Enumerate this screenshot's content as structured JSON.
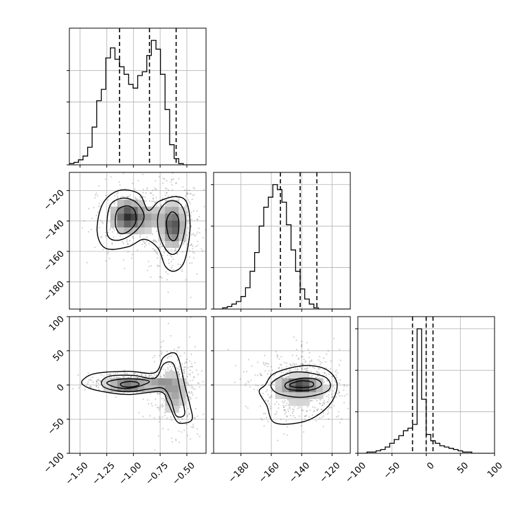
{
  "chart_data": {
    "type": "corner",
    "title": "",
    "parameters": [
      "",
      "",
      ""
    ],
    "ranges": [
      [
        -1.6,
        -0.32
      ],
      [
        -198,
        -108
      ],
      [
        -100,
        100
      ]
    ],
    "ticks": [
      [
        -1.5,
        -1.25,
        -1.0,
        -0.75,
        -0.5
      ],
      [
        -180,
        -160,
        -140,
        -120
      ],
      [
        -100,
        -50,
        0,
        50,
        100
      ]
    ],
    "tick_labels": [
      [
        "−1.50",
        "−1.25",
        "−1.00",
        "−0.75",
        "−0.50"
      ],
      [
        "−180",
        "−160",
        "−140",
        "−120"
      ],
      [
        "−100",
        "−50",
        "0",
        "50",
        "100"
      ]
    ],
    "diag_ticks": [
      [
        0,
        0.25,
        0.5,
        0.75
      ],
      [
        0,
        0.33,
        0.66,
        0.99
      ],
      [
        0,
        0.33,
        0.66,
        0.99
      ]
    ],
    "histograms": [
      {
        "edges": [
          -1.6,
          -1.557,
          -1.515,
          -1.472,
          -1.429,
          -1.387,
          -1.344,
          -1.301,
          -1.259,
          -1.216,
          -1.173,
          -1.131,
          -1.088,
          -1.045,
          -1.003,
          -0.96,
          -0.917,
          -0.875,
          -0.832,
          -0.789,
          -0.747,
          -0.704,
          -0.661,
          -0.619,
          -0.576,
          -0.533,
          -0.491,
          -0.448,
          -0.405,
          -0.363,
          -0.32
        ],
        "counts": [
          0.01,
          0.02,
          0.04,
          0.07,
          0.14,
          0.3,
          0.51,
          0.6,
          0.85,
          0.93,
          0.84,
          0.78,
          0.72,
          0.64,
          0.61,
          0.71,
          0.74,
          0.87,
          0.99,
          0.92,
          0.72,
          0.44,
          0.16,
          0.05,
          0.01,
          0.0,
          0.0,
          0.0,
          0.0,
          0.0
        ],
        "quantiles": [
          -1.13,
          -0.85,
          -0.6
        ]
      },
      {
        "edges": [
          -198,
          -195,
          -192,
          -189,
          -186,
          -183,
          -180,
          -177,
          -174,
          -171,
          -168,
          -165,
          -162,
          -159,
          -156,
          -153,
          -150,
          -147,
          -144,
          -141,
          -138,
          -135,
          -132,
          -129,
          -126,
          -123,
          -120,
          -117,
          -114,
          -111,
          -108
        ],
        "counts": [
          0.0,
          0.0,
          0.01,
          0.02,
          0.04,
          0.06,
          0.1,
          0.17,
          0.3,
          0.45,
          0.66,
          0.81,
          0.89,
          0.99,
          0.95,
          0.85,
          0.67,
          0.47,
          0.3,
          0.16,
          0.08,
          0.04,
          0.01,
          0.0,
          0.0,
          0.0,
          0.0,
          0.0,
          0.0,
          0.0
        ],
        "quantiles": [
          -154,
          -141,
          -130
        ]
      },
      {
        "edges": [
          -100,
          -93.3,
          -86.7,
          -80,
          -73.3,
          -66.7,
          -60,
          -53.3,
          -46.7,
          -40,
          -33.3,
          -26.7,
          -20,
          -13.3,
          -6.7,
          0,
          6.7,
          13.3,
          20,
          26.7,
          33.3,
          40,
          46.7,
          53.3,
          60,
          66.7,
          73.3,
          80,
          86.7,
          93.3,
          100
        ],
        "counts": [
          0.0,
          0.0,
          0.01,
          0.01,
          0.02,
          0.03,
          0.05,
          0.08,
          0.11,
          0.14,
          0.18,
          0.2,
          0.23,
          0.99,
          0.43,
          0.15,
          0.1,
          0.08,
          0.06,
          0.05,
          0.04,
          0.03,
          0.02,
          0.01,
          0.01,
          0.0,
          0.0,
          0.0,
          0.0,
          0.0
        ],
        "quantiles": [
          -20,
          0,
          10
        ]
      }
    ],
    "pairs": [
      {
        "x": 0,
        "y": 1,
        "scatter": {
          "n": 700,
          "components": [
            {
              "w": 0.45,
              "mx": -1.05,
              "my": -137,
              "sx": 0.17,
              "sy": 12
            },
            {
              "w": 0.55,
              "mx": -0.63,
              "my": -143,
              "sx": 0.12,
              "sy": 16
            }
          ]
        },
        "density": [
          {
            "mx": -1.05,
            "my": -137,
            "sx": 0.085,
            "sy": 6,
            "v": 0.75
          },
          {
            "mx": -0.63,
            "my": -143,
            "sx": 0.06,
            "sy": 8,
            "v": 0.65
          },
          {
            "mx": -0.85,
            "my": -138,
            "sx": 0.1,
            "sy": 5,
            "v": 0.25
          }
        ],
        "contours": [
          [
            [
              -1.34,
              -147
            ],
            [
              -1.29,
              -129
            ],
            [
              -1.14,
              -120
            ],
            [
              -0.95,
              -122
            ],
            [
              -0.86,
              -133
            ],
            [
              -0.76,
              -127
            ],
            [
              -0.6,
              -124
            ],
            [
              -0.5,
              -128
            ],
            [
              -0.47,
              -145
            ],
            [
              -0.52,
              -166
            ],
            [
              -0.61,
              -173
            ],
            [
              -0.7,
              -170
            ],
            [
              -0.77,
              -158
            ],
            [
              -0.9,
              -152
            ],
            [
              -1.05,
              -157
            ],
            [
              -1.26,
              -158
            ]
          ],
          [
            [
              -1.25,
              -146
            ],
            [
              -1.22,
              -130
            ],
            [
              -1.1,
              -125
            ],
            [
              -0.97,
              -128
            ],
            [
              -0.9,
              -137
            ],
            [
              -0.97,
              -146
            ],
            [
              -1.1,
              -152
            ],
            [
              -1.21,
              -152
            ]
          ],
          [
            [
              -0.76,
              -134
            ],
            [
              -0.67,
              -127
            ],
            [
              -0.56,
              -129
            ],
            [
              -0.51,
              -140
            ],
            [
              -0.56,
              -157
            ],
            [
              -0.64,
              -162
            ],
            [
              -0.72,
              -156
            ],
            [
              -0.77,
              -145
            ]
          ],
          [
            [
              -1.17,
              -142
            ],
            [
              -1.15,
              -133
            ],
            [
              -1.06,
              -130
            ],
            [
              -0.99,
              -133
            ],
            [
              -0.98,
              -141
            ],
            [
              -1.05,
              -147
            ],
            [
              -1.13,
              -148
            ]
          ],
          [
            [
              -0.69,
              -140
            ],
            [
              -0.64,
              -134
            ],
            [
              -0.58,
              -138
            ],
            [
              -0.58,
              -148
            ],
            [
              -0.62,
              -153
            ],
            [
              -0.67,
              -150
            ]
          ]
        ]
      },
      {
        "x": 0,
        "y": 2,
        "scatter": {
          "n": 700,
          "components": [
            {
              "w": 0.5,
              "mx": -1.0,
              "my": 5,
              "sx": 0.2,
              "sy": 6
            },
            {
              "w": 0.5,
              "mx": -0.62,
              "my": -5,
              "sx": 0.13,
              "sy": 32
            }
          ]
        },
        "density": [
          {
            "mx": -1.05,
            "my": 0,
            "sx": 0.11,
            "sy": 4,
            "v": 1.0
          },
          {
            "mx": -0.75,
            "my": 2,
            "sx": 0.08,
            "sy": 6,
            "v": 0.35
          },
          {
            "mx": -0.62,
            "my": -10,
            "sx": 0.07,
            "sy": 18,
            "v": 0.3
          }
        ],
        "contours": [
          [
            [
              -1.47,
              8
            ],
            [
              -1.35,
              17
            ],
            [
              -1.05,
              20
            ],
            [
              -0.8,
              18
            ],
            [
              -0.72,
              40
            ],
            [
              -0.62,
              47
            ],
            [
              -0.57,
              35
            ],
            [
              -0.52,
              0
            ],
            [
              -0.47,
              -30
            ],
            [
              -0.45,
              -50
            ],
            [
              -0.53,
              -56
            ],
            [
              -0.6,
              -52
            ],
            [
              -0.68,
              -25
            ],
            [
              -0.75,
              -10
            ],
            [
              -1.05,
              -14
            ],
            [
              -1.34,
              -8
            ],
            [
              -1.47,
              0
            ]
          ],
          [
            [
              -1.3,
              4
            ],
            [
              -1.22,
              13
            ],
            [
              -1.0,
              14
            ],
            [
              -0.8,
              10
            ],
            [
              -0.72,
              30
            ],
            [
              -0.64,
              33
            ],
            [
              -0.6,
              20
            ],
            [
              -0.56,
              -10
            ],
            [
              -0.52,
              -42
            ],
            [
              -0.6,
              -45
            ],
            [
              -0.65,
              -22
            ],
            [
              -0.72,
              -5
            ],
            [
              -0.86,
              -6
            ],
            [
              -1.05,
              -10
            ],
            [
              -1.25,
              -5
            ]
          ],
          [
            [
              -1.25,
              3
            ],
            [
              -1.15,
              8
            ],
            [
              -1.0,
              9
            ],
            [
              -0.85,
              5
            ],
            [
              -1.0,
              -4
            ],
            [
              -1.15,
              -4
            ]
          ],
          [
            [
              -1.12,
              2
            ],
            [
              -1.05,
              5
            ],
            [
              -0.97,
              4
            ],
            [
              -0.95,
              0
            ],
            [
              -1.03,
              -3
            ],
            [
              -1.1,
              -2
            ]
          ]
        ]
      },
      {
        "x": 1,
        "y": 2,
        "scatter": {
          "n": 650,
          "components": [
            {
              "w": 1.0,
              "mx": -141,
              "my": -3,
              "sx": 14,
              "sy": 26
            }
          ]
        },
        "density": [
          {
            "mx": -141,
            "my": 0,
            "sx": 6,
            "sy": 4,
            "v": 1.0
          },
          {
            "mx": -141,
            "my": -5,
            "sx": 12,
            "sy": 14,
            "v": 0.25
          }
        ],
        "contours": [
          [
            [
              -164,
              0
            ],
            [
              -158,
              17
            ],
            [
              -140,
              28
            ],
            [
              -125,
              24
            ],
            [
              -117,
              5
            ],
            [
              -119,
              -20
            ],
            [
              -128,
              -42
            ],
            [
              -141,
              -55
            ],
            [
              -158,
              -55
            ],
            [
              -163,
              -30
            ],
            [
              -168,
              -10
            ]
          ],
          [
            [
              -160,
              2
            ],
            [
              -150,
              16
            ],
            [
              -140,
              19
            ],
            [
              -125,
              12
            ],
            [
              -121,
              -2
            ],
            [
              -126,
              -12
            ],
            [
              -141,
              -18
            ],
            [
              -156,
              -12
            ]
          ],
          [
            [
              -150,
              3
            ],
            [
              -140,
              10
            ],
            [
              -130,
              8
            ],
            [
              -127,
              0
            ],
            [
              -133,
              -7
            ],
            [
              -143,
              -8
            ],
            [
              -150,
              -5
            ]
          ],
          [
            [
              -147,
              2
            ],
            [
              -140,
              6
            ],
            [
              -133,
              4
            ],
            [
              -133,
              -2
            ],
            [
              -140,
              -4
            ],
            [
              -147,
              -2
            ]
          ]
        ]
      }
    ]
  }
}
